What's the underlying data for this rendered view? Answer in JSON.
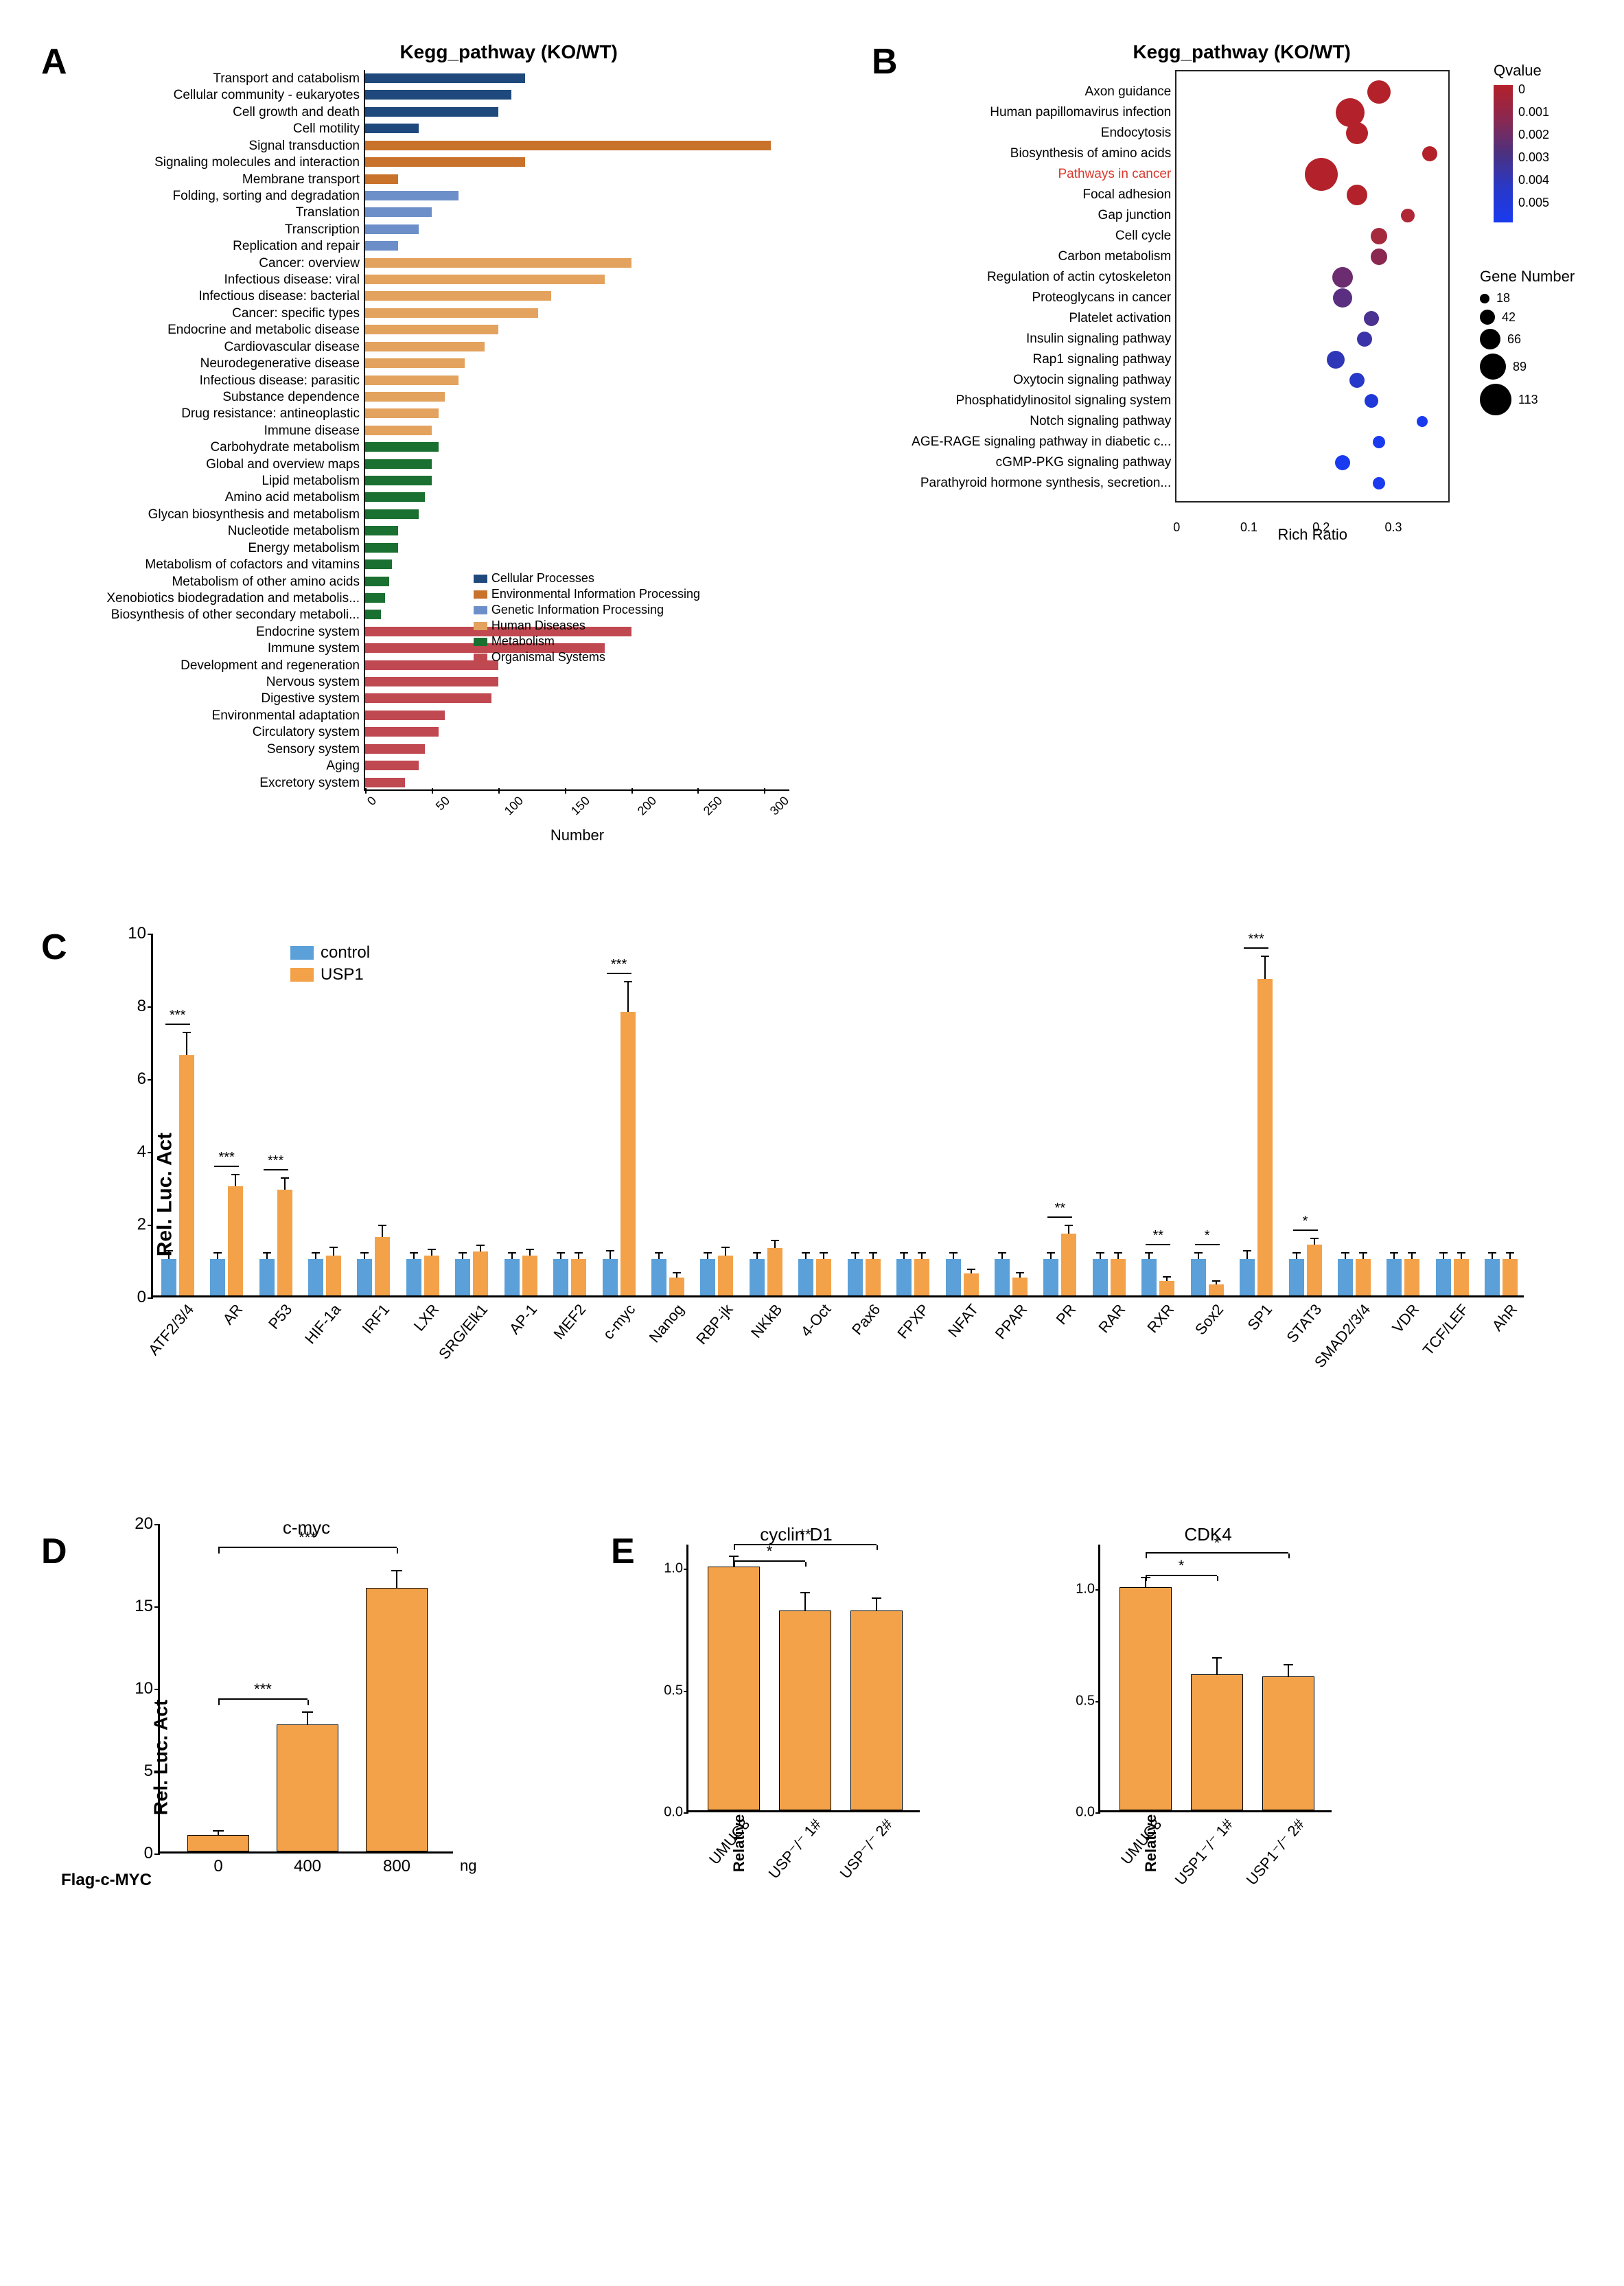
{
  "panelA": {
    "label": "A",
    "title": "Kegg_pathway (KO/WT)",
    "x_label": "Number",
    "x_ticks": [
      0,
      50,
      100,
      150,
      200,
      250,
      300
    ],
    "x_max": 320,
    "legend_items": [
      {
        "label": "Cellular Processes",
        "color": "#1f497d"
      },
      {
        "label": "Environmental Information Processing",
        "color": "#c9722b"
      },
      {
        "label": "Genetic Information Processing",
        "color": "#6d8fc9"
      },
      {
        "label": "Human Diseases",
        "color": "#e3a25d"
      },
      {
        "label": "Metabolism",
        "color": "#1a7030"
      },
      {
        "label": "Organismal Systems",
        "color": "#c04850"
      }
    ],
    "rows": [
      {
        "label": "Transport and catabolism",
        "value": 120,
        "color": "#1f497d"
      },
      {
        "label": "Cellular community - eukaryotes",
        "value": 110,
        "color": "#1f497d"
      },
      {
        "label": "Cell growth and death",
        "value": 100,
        "color": "#1f497d"
      },
      {
        "label": "Cell motility",
        "value": 40,
        "color": "#1f497d"
      },
      {
        "label": "Signal transduction",
        "value": 305,
        "color": "#c9722b"
      },
      {
        "label": "Signaling molecules and interaction",
        "value": 120,
        "color": "#c9722b"
      },
      {
        "label": "Membrane transport",
        "value": 25,
        "color": "#c9722b"
      },
      {
        "label": "Folding, sorting and degradation",
        "value": 70,
        "color": "#6d8fc9"
      },
      {
        "label": "Translation",
        "value": 50,
        "color": "#6d8fc9"
      },
      {
        "label": "Transcription",
        "value": 40,
        "color": "#6d8fc9"
      },
      {
        "label": "Replication and repair",
        "value": 25,
        "color": "#6d8fc9"
      },
      {
        "label": "Cancer: overview",
        "value": 200,
        "color": "#e3a25d"
      },
      {
        "label": "Infectious disease: viral",
        "value": 180,
        "color": "#e3a25d"
      },
      {
        "label": "Infectious disease: bacterial",
        "value": 140,
        "color": "#e3a25d"
      },
      {
        "label": "Cancer: specific types",
        "value": 130,
        "color": "#e3a25d"
      },
      {
        "label": "Endocrine and metabolic disease",
        "value": 100,
        "color": "#e3a25d"
      },
      {
        "label": "Cardiovascular disease",
        "value": 90,
        "color": "#e3a25d"
      },
      {
        "label": "Neurodegenerative disease",
        "value": 75,
        "color": "#e3a25d"
      },
      {
        "label": "Infectious disease: parasitic",
        "value": 70,
        "color": "#e3a25d"
      },
      {
        "label": "Substance dependence",
        "value": 60,
        "color": "#e3a25d"
      },
      {
        "label": "Drug resistance: antineoplastic",
        "value": 55,
        "color": "#e3a25d"
      },
      {
        "label": "Immune disease",
        "value": 50,
        "color": "#e3a25d"
      },
      {
        "label": "Carbohydrate metabolism",
        "value": 55,
        "color": "#1a7030"
      },
      {
        "label": "Global and overview maps",
        "value": 50,
        "color": "#1a7030"
      },
      {
        "label": "Lipid metabolism",
        "value": 50,
        "color": "#1a7030"
      },
      {
        "label": "Amino acid metabolism",
        "value": 45,
        "color": "#1a7030"
      },
      {
        "label": "Glycan biosynthesis and metabolism",
        "value": 40,
        "color": "#1a7030"
      },
      {
        "label": "Nucleotide metabolism",
        "value": 25,
        "color": "#1a7030"
      },
      {
        "label": "Energy metabolism",
        "value": 25,
        "color": "#1a7030"
      },
      {
        "label": "Metabolism of cofactors and vitamins",
        "value": 20,
        "color": "#1a7030"
      },
      {
        "label": "Metabolism of other amino acids",
        "value": 18,
        "color": "#1a7030"
      },
      {
        "label": "Xenobiotics biodegradation and metabolis...",
        "value": 15,
        "color": "#1a7030"
      },
      {
        "label": "Biosynthesis of other secondary metaboli...",
        "value": 12,
        "color": "#1a7030"
      },
      {
        "label": "Endocrine system",
        "value": 200,
        "color": "#c04850"
      },
      {
        "label": "Immune system",
        "value": 180,
        "color": "#c04850"
      },
      {
        "label": "Development and regeneration",
        "value": 100,
        "color": "#c04850"
      },
      {
        "label": "Nervous system",
        "value": 100,
        "color": "#c04850"
      },
      {
        "label": "Digestive system",
        "value": 95,
        "color": "#c04850"
      },
      {
        "label": "Environmental adaptation",
        "value": 60,
        "color": "#c04850"
      },
      {
        "label": "Circulatory system",
        "value": 55,
        "color": "#c04850"
      },
      {
        "label": "Sensory system",
        "value": 45,
        "color": "#c04850"
      },
      {
        "label": "Aging",
        "value": 40,
        "color": "#c04850"
      },
      {
        "label": "Excretory system",
        "value": 30,
        "color": "#c04850"
      }
    ]
  },
  "panelB": {
    "label": "B",
    "title": "Kegg_pathway (KO/WT)",
    "x_label": "Rich Ratio",
    "x_ticks": [
      0,
      0.1,
      0.2,
      0.3
    ],
    "x_max": 0.38,
    "qvalue_title": "Qvalue",
    "qvalue_ticks": [
      "0",
      "0.001",
      "0.002",
      "0.003",
      "0.004",
      "0.005"
    ],
    "qvalue_colors": {
      "top": "#b3212a",
      "bottom": "#1a3af0"
    },
    "size_title": "Gene Number",
    "size_ticks": [
      {
        "n": 18,
        "d": 14
      },
      {
        "n": 42,
        "d": 22
      },
      {
        "n": 66,
        "d": 30
      },
      {
        "n": 89,
        "d": 38
      },
      {
        "n": 113,
        "d": 46
      }
    ],
    "highlight": "Pathways in cancer",
    "rows": [
      {
        "label": "Axon guidance",
        "x": 0.28,
        "size": 34,
        "color": "#b3212a"
      },
      {
        "label": "Human papillomavirus infection",
        "x": 0.24,
        "size": 42,
        "color": "#b3212a"
      },
      {
        "label": "Endocytosis",
        "x": 0.25,
        "size": 32,
        "color": "#b3212a"
      },
      {
        "label": "Biosynthesis of amino acids",
        "x": 0.35,
        "size": 22,
        "color": "#b3212a"
      },
      {
        "label": "Pathways in cancer",
        "x": 0.2,
        "size": 48,
        "color": "#b3212a"
      },
      {
        "label": "Focal adhesion",
        "x": 0.25,
        "size": 30,
        "color": "#b3212a"
      },
      {
        "label": "Gap junction",
        "x": 0.32,
        "size": 20,
        "color": "#b02835"
      },
      {
        "label": "Cell cycle",
        "x": 0.28,
        "size": 24,
        "color": "#a52a3e"
      },
      {
        "label": "Carbon metabolism",
        "x": 0.28,
        "size": 24,
        "color": "#8a2851"
      },
      {
        "label": "Regulation of actin cytoskeleton",
        "x": 0.23,
        "size": 30,
        "color": "#6c2c70"
      },
      {
        "label": "Proteoglycans in cancer",
        "x": 0.23,
        "size": 28,
        "color": "#5a2e80"
      },
      {
        "label": "Platelet activation",
        "x": 0.27,
        "size": 22,
        "color": "#4b3190"
      },
      {
        "label": "Insulin signaling pathway",
        "x": 0.26,
        "size": 22,
        "color": "#3a34a8"
      },
      {
        "label": "Rap1 signaling pathway",
        "x": 0.22,
        "size": 26,
        "color": "#3036b8"
      },
      {
        "label": "Oxytocin signaling pathway",
        "x": 0.25,
        "size": 22,
        "color": "#2838c8"
      },
      {
        "label": "Phosphatidylinositol signaling system",
        "x": 0.27,
        "size": 20,
        "color": "#2038d8"
      },
      {
        "label": "Notch signaling pathway",
        "x": 0.34,
        "size": 16,
        "color": "#1a3af0"
      },
      {
        "label": "AGE-RAGE signaling pathway in diabetic c...",
        "x": 0.28,
        "size": 18,
        "color": "#1a3af0"
      },
      {
        "label": "cGMP-PKG signaling pathway",
        "x": 0.23,
        "size": 22,
        "color": "#1a3af0"
      },
      {
        "label": "Parathyroid hormone synthesis, secretion...",
        "x": 0.28,
        "size": 18,
        "color": "#1a3af0"
      }
    ]
  },
  "panelC": {
    "label": "C",
    "y_label": "Rel. Luc. Act",
    "y_max": 10,
    "y_ticks": [
      0,
      2,
      4,
      6,
      8,
      10
    ],
    "colors": {
      "control": "#5ba0d9",
      "usp1": "#f3a24a"
    },
    "legend": [
      {
        "label": "control",
        "color": "#5ba0d9"
      },
      {
        "label": "USP1",
        "color": "#f3a24a"
      }
    ],
    "groups": [
      {
        "name": "ATF2/3/4",
        "c": 1.0,
        "u": 6.6,
        "ce": 0.2,
        "ue": 0.6,
        "sig": "***"
      },
      {
        "name": "AR",
        "c": 1.0,
        "u": 3.0,
        "ce": 0.15,
        "ue": 0.3,
        "sig": "***"
      },
      {
        "name": "P53",
        "c": 1.0,
        "u": 2.9,
        "ce": 0.15,
        "ue": 0.3,
        "sig": "***"
      },
      {
        "name": "HIF-1a",
        "c": 1.0,
        "u": 1.1,
        "ce": 0.15,
        "ue": 0.2,
        "sig": ""
      },
      {
        "name": "IRF1",
        "c": 1.0,
        "u": 1.6,
        "ce": 0.15,
        "ue": 0.3,
        "sig": ""
      },
      {
        "name": "LXR",
        "c": 1.0,
        "u": 1.1,
        "ce": 0.15,
        "ue": 0.15,
        "sig": ""
      },
      {
        "name": "SRG/Elk1",
        "c": 1.0,
        "u": 1.2,
        "ce": 0.15,
        "ue": 0.15,
        "sig": ""
      },
      {
        "name": "AP-1",
        "c": 1.0,
        "u": 1.1,
        "ce": 0.15,
        "ue": 0.15,
        "sig": ""
      },
      {
        "name": "MEF2",
        "c": 1.0,
        "u": 1.0,
        "ce": 0.15,
        "ue": 0.15,
        "sig": ""
      },
      {
        "name": "c-myc",
        "c": 1.0,
        "u": 7.8,
        "ce": 0.2,
        "ue": 0.8,
        "sig": "***"
      },
      {
        "name": "Nanog",
        "c": 1.0,
        "u": 0.5,
        "ce": 0.15,
        "ue": 0.1,
        "sig": ""
      },
      {
        "name": "RBP-jk",
        "c": 1.0,
        "u": 1.1,
        "ce": 0.15,
        "ue": 0.2,
        "sig": ""
      },
      {
        "name": "NKkB",
        "c": 1.0,
        "u": 1.3,
        "ce": 0.15,
        "ue": 0.2,
        "sig": ""
      },
      {
        "name": "4-Oct",
        "c": 1.0,
        "u": 1.0,
        "ce": 0.15,
        "ue": 0.15,
        "sig": ""
      },
      {
        "name": "Pax6",
        "c": 1.0,
        "u": 1.0,
        "ce": 0.15,
        "ue": 0.15,
        "sig": ""
      },
      {
        "name": "FPXP",
        "c": 1.0,
        "u": 1.0,
        "ce": 0.15,
        "ue": 0.15,
        "sig": ""
      },
      {
        "name": "NFAT",
        "c": 1.0,
        "u": 0.6,
        "ce": 0.15,
        "ue": 0.1,
        "sig": ""
      },
      {
        "name": "PPAR",
        "c": 1.0,
        "u": 0.5,
        "ce": 0.15,
        "ue": 0.1,
        "sig": ""
      },
      {
        "name": "PR",
        "c": 1.0,
        "u": 1.7,
        "ce": 0.15,
        "ue": 0.2,
        "sig": "**"
      },
      {
        "name": "RAR",
        "c": 1.0,
        "u": 1.0,
        "ce": 0.15,
        "ue": 0.15,
        "sig": ""
      },
      {
        "name": "RXR",
        "c": 1.0,
        "u": 0.4,
        "ce": 0.15,
        "ue": 0.1,
        "sig": "**"
      },
      {
        "name": "Sox2",
        "c": 1.0,
        "u": 0.3,
        "ce": 0.15,
        "ue": 0.08,
        "sig": "*"
      },
      {
        "name": "SP1",
        "c": 1.0,
        "u": 8.7,
        "ce": 0.2,
        "ue": 0.6,
        "sig": "***"
      },
      {
        "name": "STAT3",
        "c": 1.0,
        "u": 1.4,
        "ce": 0.15,
        "ue": 0.15,
        "sig": "*"
      },
      {
        "name": "SMAD2/3/4",
        "c": 1.0,
        "u": 1.0,
        "ce": 0.15,
        "ue": 0.15,
        "sig": ""
      },
      {
        "name": "VDR",
        "c": 1.0,
        "u": 1.0,
        "ce": 0.15,
        "ue": 0.15,
        "sig": ""
      },
      {
        "name": "TCF/LEF",
        "c": 1.0,
        "u": 1.0,
        "ce": 0.15,
        "ue": 0.15,
        "sig": ""
      },
      {
        "name": "AhR",
        "c": 1.0,
        "u": 1.0,
        "ce": 0.15,
        "ue": 0.15,
        "sig": ""
      }
    ]
  },
  "panelD": {
    "label": "D",
    "title": "c-myc",
    "y_label": "Rel. Luc. Act",
    "y_max": 20,
    "y_ticks": [
      0,
      5,
      10,
      15,
      20
    ],
    "x_axis_label": "Flag-c-MYC",
    "unit": "ng",
    "color": "#f3a24a",
    "bars": [
      {
        "x": "0",
        "v": 1.0,
        "e": 0.2
      },
      {
        "x": "400",
        "v": 7.7,
        "e": 0.7
      },
      {
        "x": "800",
        "v": 16.0,
        "e": 1.0
      }
    ],
    "sigs": [
      {
        "from": 0,
        "to": 1,
        "y": 9.2,
        "label": "***"
      },
      {
        "from": 0,
        "to": 2,
        "y": 18.4,
        "label": "***"
      }
    ]
  },
  "panelE": {
    "label": "E",
    "y_label": "Relative mRNA expression level",
    "y_ticks": [
      0,
      0.5,
      1.0
    ],
    "color": "#f3a24a",
    "charts": [
      {
        "title": "cyclin D1",
        "y_max": 1.1,
        "bars": [
          {
            "x": "UMUC3",
            "v": 1.0,
            "e": 0.04
          },
          {
            "x": "USP⁻/⁻ 1#",
            "v": 0.82,
            "e": 0.07
          },
          {
            "x": "USP⁻/⁻ 2#",
            "v": 0.82,
            "e": 0.05
          }
        ],
        "sigs": [
          {
            "from": 0,
            "to": 1,
            "y": 1.02,
            "label": "*"
          },
          {
            "from": 0,
            "to": 2,
            "y": 1.09,
            "label": "**"
          }
        ]
      },
      {
        "title": "CDK4",
        "y_max": 1.2,
        "bars": [
          {
            "x": "UMUC3",
            "v": 1.0,
            "e": 0.04
          },
          {
            "x": "USP1⁻/⁻ 1#",
            "v": 0.61,
            "e": 0.07
          },
          {
            "x": "USP1⁻/⁻ 2#",
            "v": 0.6,
            "e": 0.05
          }
        ],
        "sigs": [
          {
            "from": 0,
            "to": 1,
            "y": 1.05,
            "label": "*"
          },
          {
            "from": 0,
            "to": 2,
            "y": 1.15,
            "label": "*"
          }
        ]
      }
    ]
  }
}
